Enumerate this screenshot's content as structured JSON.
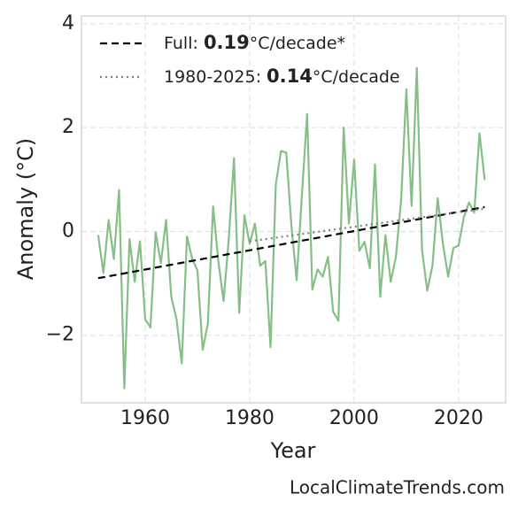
{
  "chart_data": {
    "type": "line",
    "xlabel": "Year",
    "ylabel": "Anomaly (°C)",
    "watermark": "LocalClimateTrends.com",
    "x": [
      1951,
      1952,
      1953,
      1954,
      1955,
      1956,
      1957,
      1958,
      1959,
      1960,
      1961,
      1962,
      1963,
      1964,
      1965,
      1966,
      1967,
      1968,
      1969,
      1970,
      1971,
      1972,
      1973,
      1974,
      1975,
      1976,
      1977,
      1978,
      1979,
      1980,
      1981,
      1982,
      1983,
      1984,
      1985,
      1986,
      1987,
      1988,
      1989,
      1990,
      1991,
      1992,
      1993,
      1994,
      1995,
      1996,
      1997,
      1998,
      1999,
      2000,
      2001,
      2002,
      2003,
      2004,
      2005,
      2006,
      2007,
      2008,
      2009,
      2010,
      2011,
      2012,
      2013,
      2014,
      2015,
      2016,
      2017,
      2018,
      2019,
      2020,
      2021,
      2022,
      2023,
      2024,
      2025
    ],
    "series": [
      {
        "style": "solid",
        "color": "#86bf86",
        "width": 2.2,
        "values": [
          -0.07,
          -0.8,
          0.22,
          -0.53,
          0.8,
          -3.02,
          -0.15,
          -0.97,
          -0.19,
          -1.69,
          -1.85,
          -0.02,
          -0.61,
          0.22,
          -1.26,
          -1.69,
          -2.54,
          -0.1,
          -0.53,
          -0.75,
          -2.28,
          -1.77,
          0.48,
          -0.57,
          -1.34,
          -0.15,
          1.41,
          -1.57,
          0.31,
          -0.24,
          0.15,
          -0.66,
          -0.57,
          -2.23,
          0.9,
          1.55,
          1.52,
          0.1,
          -0.94,
          0.7,
          2.26,
          -1.12,
          -0.73,
          -0.87,
          -0.49,
          -1.55,
          -1.72,
          2.0,
          0.15,
          1.38,
          -0.37,
          -0.2,
          -0.71,
          1.29,
          -1.26,
          -0.07,
          -0.97,
          -0.49,
          0.61,
          2.74,
          0.49,
          3.15,
          -0.36,
          -1.14,
          -0.66,
          0.64,
          -0.24,
          -0.87,
          -0.32,
          -0.27,
          0.27,
          0.56,
          0.36,
          1.89,
          0.99
        ]
      },
      {
        "name_parts": [
          "Full: ",
          "0.19",
          "°C/decade*"
        ],
        "style": "dashed",
        "color": "#000000",
        "width": 2.2,
        "x": [
          1951,
          2025
        ],
        "values": [
          -0.9,
          0.47
        ]
      },
      {
        "name_parts": [
          "1980-2025: ",
          "0.14",
          "°C/decade"
        ],
        "style": "dotted",
        "color": "#808080",
        "width": 2.2,
        "x": [
          1980,
          2025
        ],
        "values": [
          -0.19,
          0.44
        ]
      }
    ],
    "xlim": [
      1947.8,
      2029
    ],
    "ylim": [
      -3.3,
      4.15
    ],
    "xticks": [
      1960,
      1980,
      2000,
      2020
    ],
    "yticks": [
      {
        "value": -2,
        "label": "−2"
      },
      0,
      2,
      4
    ],
    "grid": true,
    "legend": "upper left"
  }
}
